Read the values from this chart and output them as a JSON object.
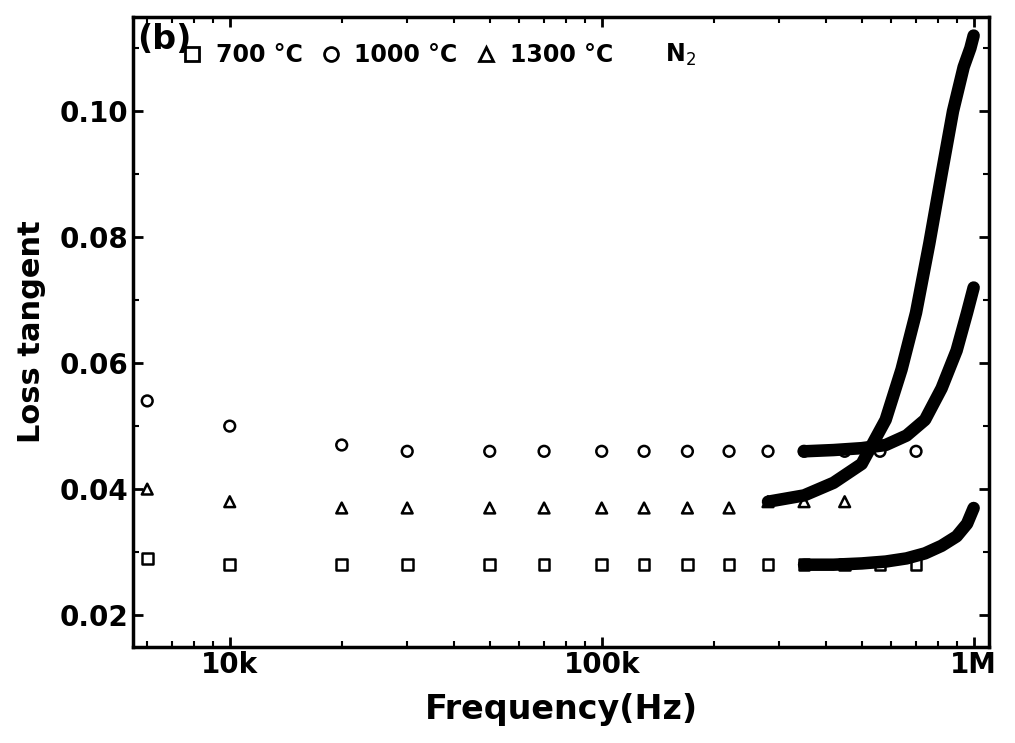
{
  "title": "(b)",
  "xlabel": "Frequency(Hz)",
  "ylabel": "Loss tangent",
  "xmin": 5500,
  "xmax": 1100000,
  "ymin": 0.015,
  "ymax": 0.115,
  "yticks": [
    0.02,
    0.04,
    0.06,
    0.08,
    0.1
  ],
  "xtick_labels": [
    "10k",
    "100k",
    "1M"
  ],
  "xtick_positions": [
    10000,
    100000,
    1000000
  ],
  "series": [
    {
      "label": "700 °C",
      "marker": "s",
      "scatter_x": [
        6000,
        10000,
        20000,
        30000,
        50000,
        70000,
        100000,
        130000,
        170000,
        220000,
        280000,
        350000,
        450000,
        560000,
        700000
      ],
      "scatter_y": [
        0.029,
        0.028,
        0.028,
        0.028,
        0.028,
        0.028,
        0.028,
        0.028,
        0.028,
        0.028,
        0.028,
        0.028,
        0.028,
        0.028,
        0.028
      ],
      "line_x": [
        350000,
        420000,
        500000,
        580000,
        660000,
        740000,
        820000,
        900000,
        960000,
        1000000
      ],
      "line_y": [
        0.028,
        0.028,
        0.0282,
        0.0285,
        0.029,
        0.0298,
        0.031,
        0.0325,
        0.0345,
        0.037
      ],
      "linewidth": 9
    },
    {
      "label": "1000 °C",
      "marker": "o",
      "scatter_x": [
        6000,
        10000,
        20000,
        30000,
        50000,
        70000,
        100000,
        130000,
        170000,
        220000,
        280000,
        350000,
        450000,
        560000,
        700000
      ],
      "scatter_y": [
        0.054,
        0.05,
        0.047,
        0.046,
        0.046,
        0.046,
        0.046,
        0.046,
        0.046,
        0.046,
        0.046,
        0.046,
        0.046,
        0.046,
        0.046
      ],
      "line_x": [
        350000,
        420000,
        500000,
        580000,
        660000,
        740000,
        820000,
        900000,
        960000,
        1000000
      ],
      "line_y": [
        0.046,
        0.0462,
        0.0465,
        0.047,
        0.0485,
        0.051,
        0.056,
        0.062,
        0.068,
        0.072
      ],
      "linewidth": 9
    },
    {
      "label": "1300 °C",
      "marker": "^",
      "scatter_x": [
        6000,
        10000,
        20000,
        30000,
        50000,
        70000,
        100000,
        130000,
        170000,
        220000,
        280000,
        350000,
        450000
      ],
      "scatter_y": [
        0.04,
        0.038,
        0.037,
        0.037,
        0.037,
        0.037,
        0.037,
        0.037,
        0.037,
        0.037,
        0.038,
        0.038,
        0.038
      ],
      "line_x": [
        280000,
        350000,
        420000,
        500000,
        580000,
        640000,
        700000,
        760000,
        820000,
        880000,
        940000,
        980000,
        1000000
      ],
      "line_y": [
        0.038,
        0.039,
        0.041,
        0.044,
        0.051,
        0.059,
        0.068,
        0.079,
        0.09,
        0.1,
        0.107,
        0.11,
        0.112
      ],
      "linewidth": 9
    }
  ],
  "bg_color": "#ffffff",
  "text_color": "#000000"
}
